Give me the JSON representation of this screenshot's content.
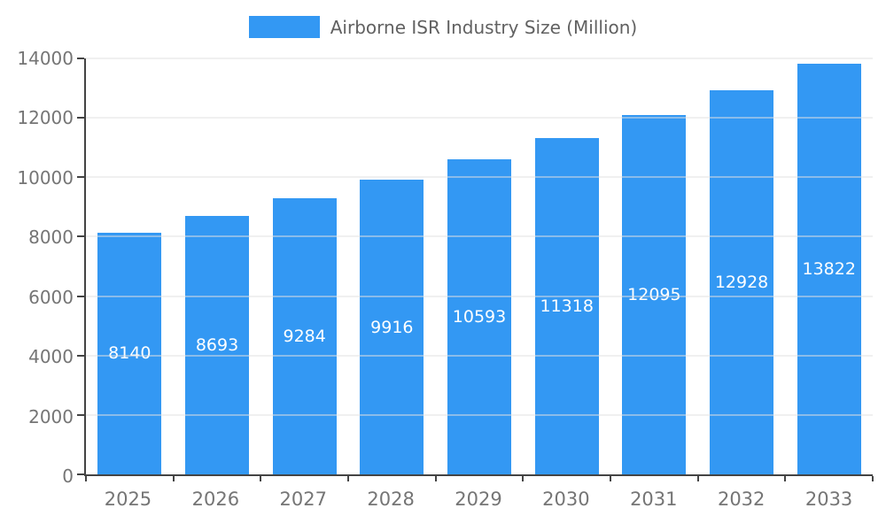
{
  "chart_data": {
    "type": "bar",
    "title": "Airborne ISR Industry Size (Million)",
    "categories": [
      "2025",
      "2026",
      "2027",
      "2028",
      "2029",
      "2030",
      "2031",
      "2032",
      "2033"
    ],
    "values": [
      8140,
      8693,
      9284,
      9916,
      10593,
      11318,
      12095,
      12928,
      13822
    ],
    "xlabel": "",
    "ylabel": "",
    "ylim": [
      0,
      14000
    ],
    "yticks": [
      0,
      2000,
      4000,
      6000,
      8000,
      10000,
      12000,
      14000
    ],
    "grid": true,
    "legend_position": "top",
    "value_labels": "inside-center",
    "colors": {
      "bar": "#3398f3",
      "grid": "#e0e0e0",
      "axis_line": "#444444",
      "axis_text": "#757575",
      "value_label": "#ffffff",
      "title_text": "#616161"
    }
  }
}
